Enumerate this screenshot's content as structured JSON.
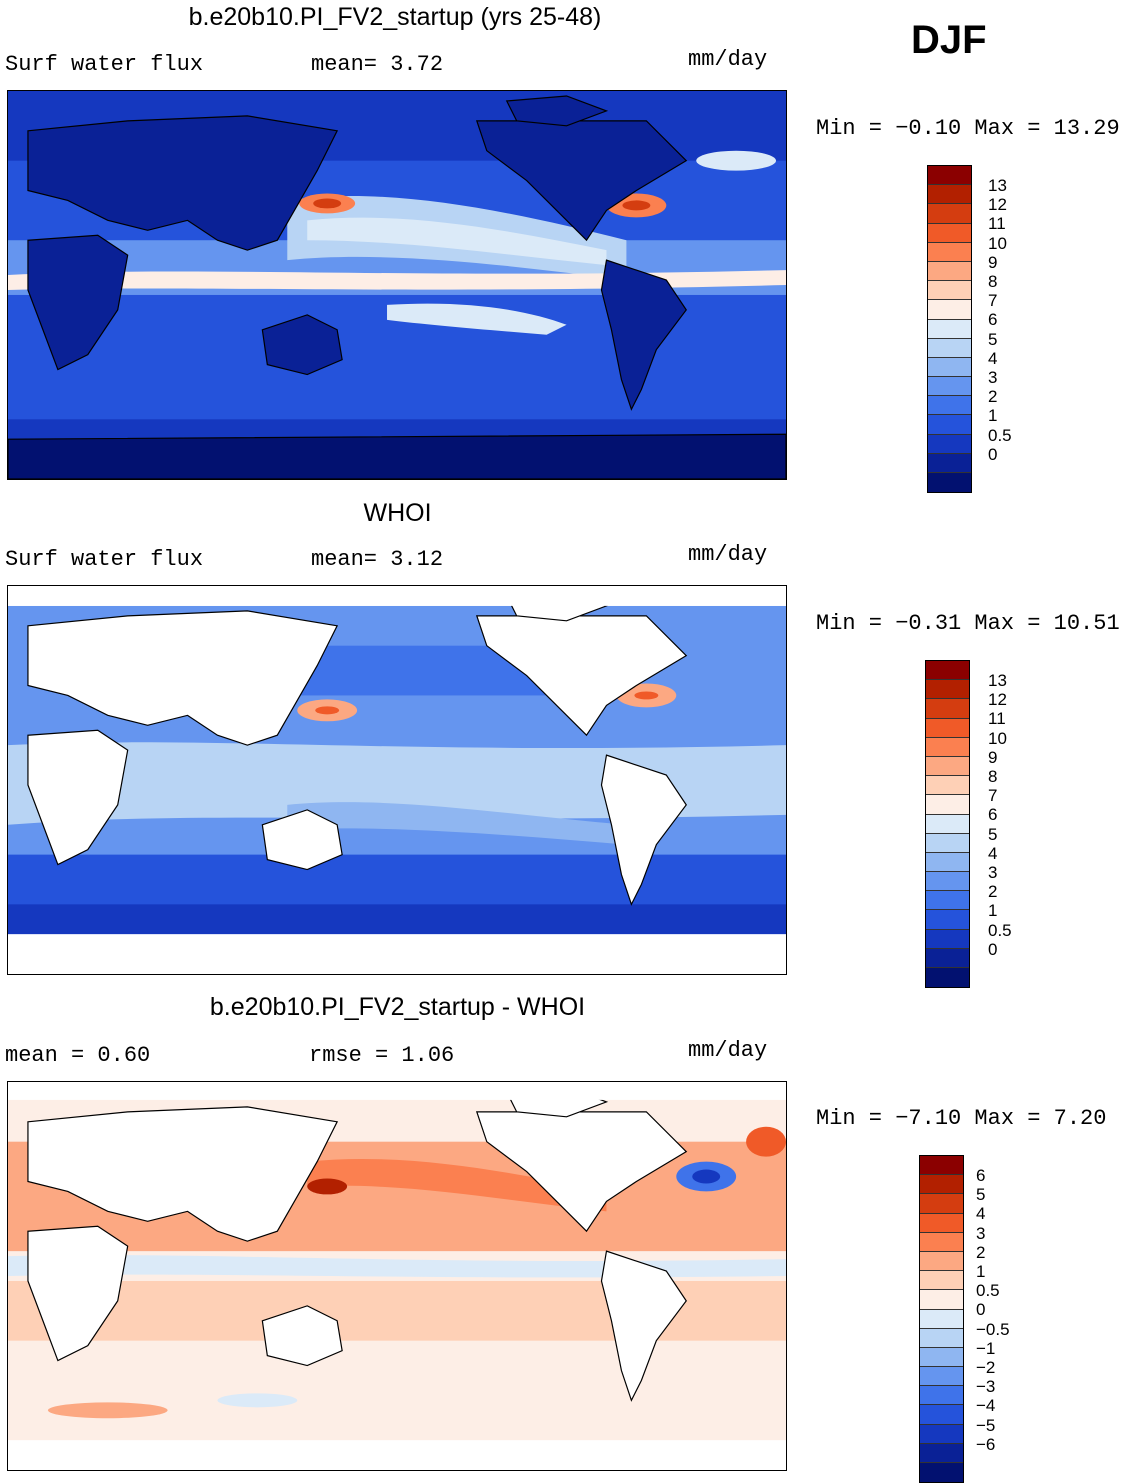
{
  "season": "DJF",
  "panels": [
    {
      "title": "b.e20b10.PI_FV2_startup (yrs 25-48)",
      "left_label": "Surf  water flux",
      "mid_label": "mean=    3.72",
      "units": "mm/day",
      "minmax": "Min  =    −0.10  Max  =    13.29",
      "colorbar": {
        "colors": [
          "#8b0000",
          "#b22000",
          "#d43d10",
          "#f05a28",
          "#fb8050",
          "#fca882",
          "#fed0b6",
          "#fdeee6",
          "#dbeaf8",
          "#b8d4f4",
          "#8fb6f1",
          "#6595ef",
          "#3f73ea",
          "#2553db",
          "#1538bf",
          "#0a2196",
          "#021170"
        ],
        "labels": [
          "13",
          "12",
          "11",
          "10",
          "9",
          "8",
          "7",
          "6",
          "5",
          "4",
          "3",
          "2",
          "1",
          "0.5",
          "0"
        ]
      }
    },
    {
      "title": "WHOI",
      "left_label": "Surf  water flux",
      "mid_label": "mean=    3.12",
      "units": "mm/day",
      "minmax": "Min  =    −0.31  Max  =    10.51",
      "colorbar": {
        "colors": [
          "#8b0000",
          "#b22000",
          "#d43d10",
          "#f05a28",
          "#fb8050",
          "#fca882",
          "#fed0b6",
          "#fdeee6",
          "#dbeaf8",
          "#b8d4f4",
          "#8fb6f1",
          "#6595ef",
          "#3f73ea",
          "#2553db",
          "#1538bf",
          "#0a2196",
          "#021170"
        ],
        "labels": [
          "13",
          "12",
          "11",
          "10",
          "9",
          "8",
          "7",
          "6",
          "5",
          "4",
          "3",
          "2",
          "1",
          "0.5",
          "0"
        ]
      }
    },
    {
      "title": "b.e20b10.PI_FV2_startup - WHOI",
      "left_label": "mean  =     0.60",
      "mid_label": "rmse  =     1.06",
      "units": "mm/day",
      "minmax": "Min  =    −7.10  Max  =      7.20",
      "colorbar": {
        "colors": [
          "#8b0000",
          "#b22000",
          "#d43d10",
          "#f05a28",
          "#fb8050",
          "#fca882",
          "#fed0b6",
          "#fdeee6",
          "#dbeaf8",
          "#b8d4f4",
          "#8fb6f1",
          "#6595ef",
          "#3f73ea",
          "#2553db",
          "#1538bf",
          "#0a2196",
          "#021170"
        ],
        "labels": [
          "6",
          "5",
          "4",
          "3",
          "2",
          "1",
          "0.5",
          "0",
          "−0.5",
          "−1",
          "−2",
          "−3",
          "−4",
          "−5",
          "−6"
        ]
      }
    }
  ]
}
